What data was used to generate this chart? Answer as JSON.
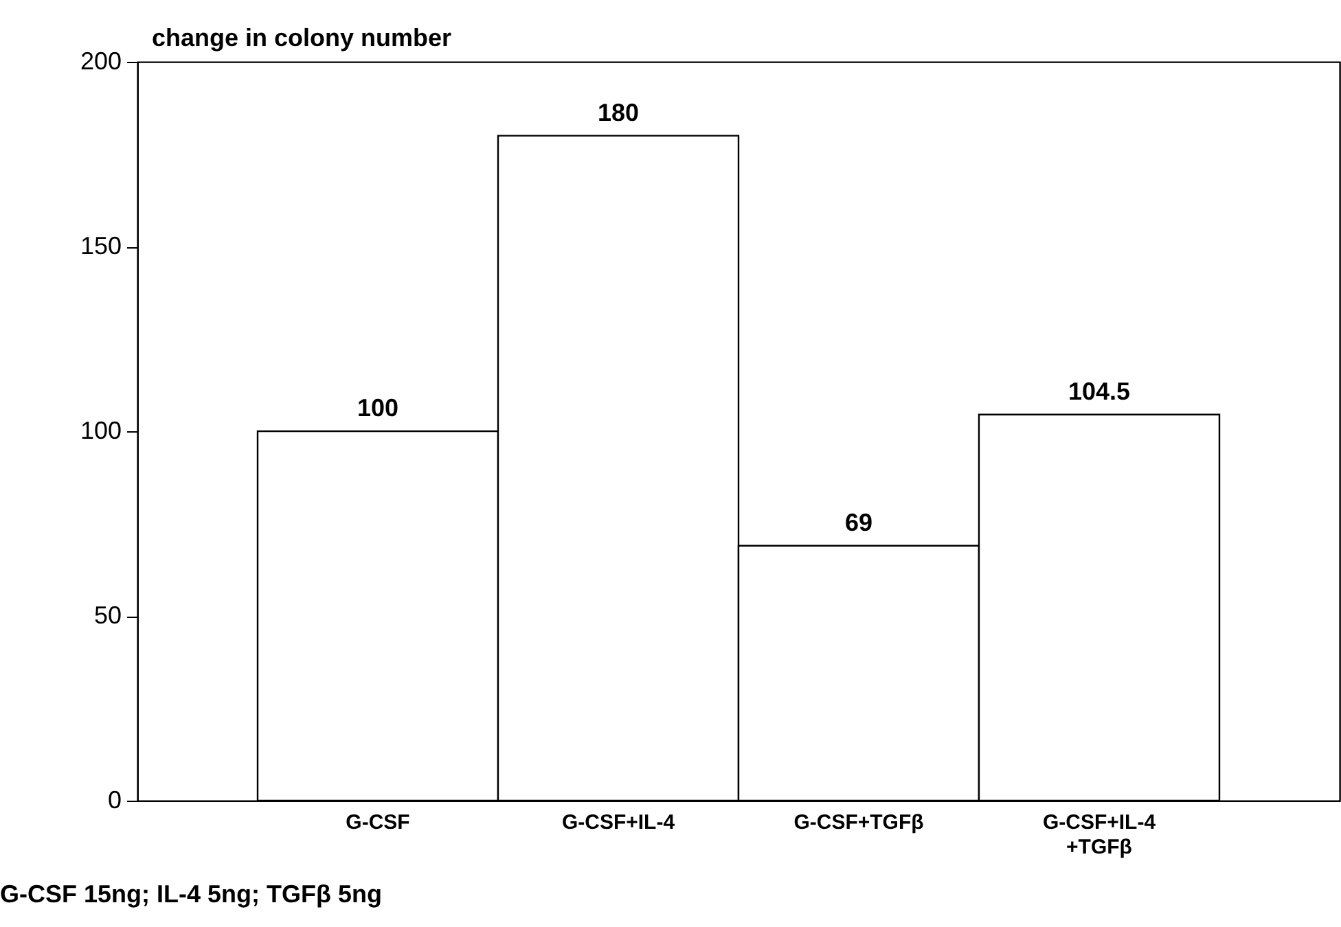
{
  "chart_data": {
    "type": "bar",
    "ylabel": "change in colony number",
    "categories": [
      "G-CSF",
      "G-CSF+IL-4",
      "G-CSF+TGFβ",
      "G-CSF+IL-4 +TGFβ"
    ],
    "values": [
      100,
      180,
      69,
      104.5
    ],
    "color": "#ffffff",
    "ylim": [
      0,
      200
    ],
    "yticks": [
      0,
      50,
      100,
      150,
      200
    ],
    "grid": false,
    "data_labels": true,
    "annotations": [
      "G-CSF 15ng; IL-4 5ng; TGFβ 5ng"
    ]
  }
}
